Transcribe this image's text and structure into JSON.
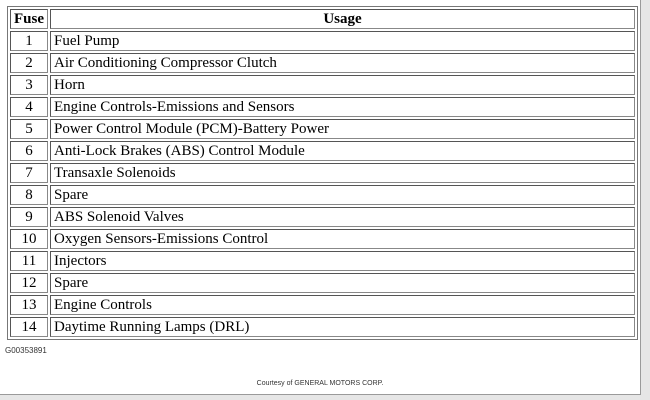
{
  "table": {
    "headers": [
      "Fuse",
      "Usage"
    ],
    "rows": [
      {
        "fuse": "1",
        "usage": "Fuel Pump"
      },
      {
        "fuse": "2",
        "usage": "Air Conditioning Compressor Clutch"
      },
      {
        "fuse": "3",
        "usage": "Horn"
      },
      {
        "fuse": "4",
        "usage": "Engine Controls-Emissions and Sensors"
      },
      {
        "fuse": "5",
        "usage": "Power Control Module (PCM)-Battery Power"
      },
      {
        "fuse": "6",
        "usage": "Anti-Lock Brakes (ABS) Control Module"
      },
      {
        "fuse": "7",
        "usage": "Transaxle Solenoids"
      },
      {
        "fuse": "8",
        "usage": "Spare"
      },
      {
        "fuse": "9",
        "usage": "ABS Solenoid Valves"
      },
      {
        "fuse": "10",
        "usage": "Oxygen Sensors-Emissions Control"
      },
      {
        "fuse": "11",
        "usage": "Injectors"
      },
      {
        "fuse": "12",
        "usage": "Spare"
      },
      {
        "fuse": "13",
        "usage": "Engine Controls"
      },
      {
        "fuse": "14",
        "usage": "Daytime Running Lamps (DRL)"
      }
    ]
  },
  "figure_code": "G00353891",
  "courtesy": "Courtesy of GENERAL MOTORS CORP."
}
